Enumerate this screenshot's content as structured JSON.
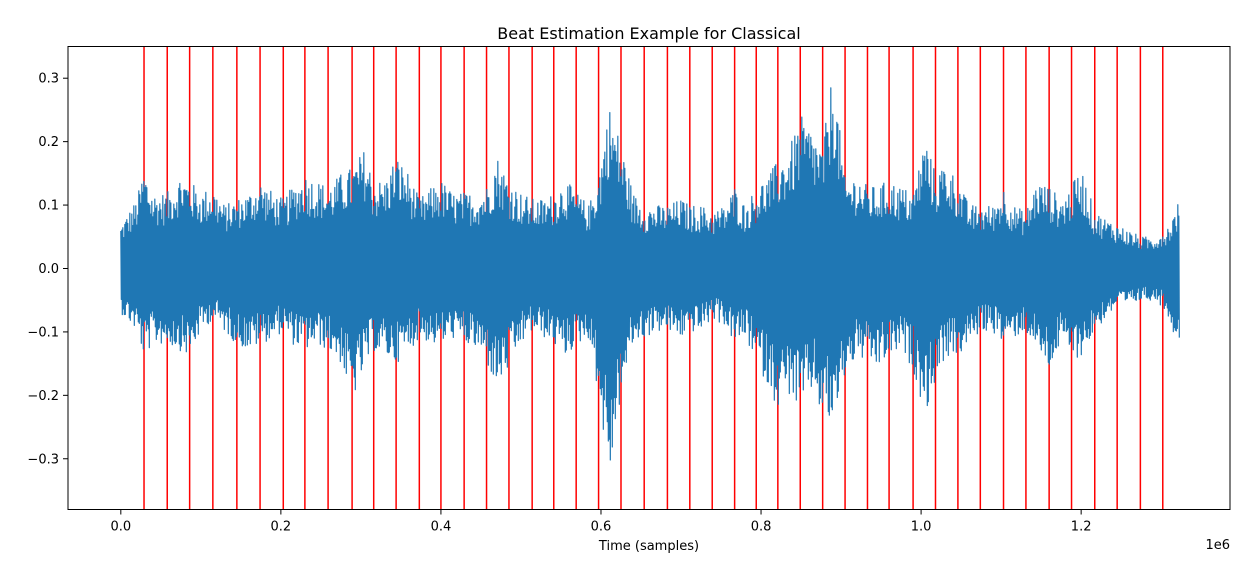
{
  "chart_data": {
    "type": "line",
    "title": "Beat Estimation Example for Classical",
    "xlabel": "Time (samples)",
    "ylabel": "",
    "x_offset_label": "1e6",
    "xlim": [
      -0.066,
      1.386
    ],
    "ylim": [
      -0.38,
      0.35
    ],
    "x_unit_multiplier": 1000000,
    "x_ticks": [
      0.0,
      0.2,
      0.4,
      0.6,
      0.8,
      1.0,
      1.2
    ],
    "x_tick_labels": [
      "0.0",
      "0.2",
      "0.4",
      "0.6",
      "0.8",
      "1.0",
      "1.2"
    ],
    "y_ticks": [
      -0.3,
      -0.2,
      -0.1,
      0.0,
      0.1,
      0.2,
      0.3
    ],
    "y_tick_labels": [
      "−0.3",
      "−0.2",
      "−0.1",
      "0.0",
      "0.1",
      "0.2",
      "0.3"
    ],
    "grid": false,
    "series": [
      {
        "kind": "waveform",
        "color": "#1f77b4",
        "x_range": [
          0.0,
          1.323
        ],
        "envelope": {
          "x": [
            0.0,
            0.02,
            0.029,
            0.04,
            0.058,
            0.075,
            0.086,
            0.1,
            0.115,
            0.13,
            0.145,
            0.16,
            0.174,
            0.19,
            0.203,
            0.215,
            0.23,
            0.245,
            0.26,
            0.275,
            0.289,
            0.305,
            0.316,
            0.33,
            0.344,
            0.36,
            0.373,
            0.39,
            0.4,
            0.415,
            0.43,
            0.445,
            0.457,
            0.47,
            0.485,
            0.5,
            0.514,
            0.53,
            0.541,
            0.555,
            0.57,
            0.585,
            0.597,
            0.61,
            0.625,
            0.64,
            0.654,
            0.67,
            0.683,
            0.7,
            0.711,
            0.725,
            0.739,
            0.755,
            0.767,
            0.78,
            0.795,
            0.81,
            0.821,
            0.835,
            0.85,
            0.865,
            0.877,
            0.89,
            0.905,
            0.92,
            0.933,
            0.945,
            0.96,
            0.975,
            0.99,
            1.005,
            1.018,
            1.03,
            1.046,
            1.06,
            1.074,
            1.09,
            1.103,
            1.115,
            1.131,
            1.145,
            1.16,
            1.175,
            1.188,
            1.2,
            1.217,
            1.23,
            1.245,
            1.26,
            1.275,
            1.29,
            1.302,
            1.31,
            1.323
          ],
          "upper": [
            0.07,
            0.11,
            0.16,
            0.12,
            0.12,
            0.15,
            0.14,
            0.12,
            0.13,
            0.1,
            0.11,
            0.12,
            0.14,
            0.12,
            0.11,
            0.13,
            0.15,
            0.14,
            0.13,
            0.15,
            0.16,
            0.19,
            0.14,
            0.14,
            0.18,
            0.15,
            0.11,
            0.13,
            0.14,
            0.12,
            0.12,
            0.12,
            0.13,
            0.18,
            0.14,
            0.12,
            0.11,
            0.11,
            0.12,
            0.14,
            0.12,
            0.1,
            0.15,
            0.26,
            0.2,
            0.12,
            0.1,
            0.1,
            0.1,
            0.11,
            0.1,
            0.1,
            0.09,
            0.1,
            0.13,
            0.1,
            0.13,
            0.15,
            0.17,
            0.19,
            0.24,
            0.22,
            0.19,
            0.32,
            0.14,
            0.15,
            0.13,
            0.13,
            0.14,
            0.13,
            0.12,
            0.21,
            0.15,
            0.17,
            0.14,
            0.1,
            0.1,
            0.1,
            0.13,
            0.1,
            0.09,
            0.14,
            0.13,
            0.11,
            0.13,
            0.16,
            0.09,
            0.08,
            0.07,
            0.06,
            0.05,
            0.05,
            0.06,
            0.07,
            0.11
          ],
          "lower": [
            -0.07,
            -0.1,
            -0.14,
            -0.12,
            -0.12,
            -0.13,
            -0.14,
            -0.1,
            -0.08,
            -0.1,
            -0.12,
            -0.13,
            -0.12,
            -0.11,
            -0.1,
            -0.12,
            -0.13,
            -0.12,
            -0.13,
            -0.15,
            -0.21,
            -0.16,
            -0.13,
            -0.14,
            -0.15,
            -0.13,
            -0.11,
            -0.12,
            -0.12,
            -0.11,
            -0.12,
            -0.13,
            -0.15,
            -0.19,
            -0.16,
            -0.12,
            -0.1,
            -0.11,
            -0.12,
            -0.14,
            -0.12,
            -0.11,
            -0.2,
            -0.34,
            -0.2,
            -0.12,
            -0.11,
            -0.1,
            -0.1,
            -0.11,
            -0.1,
            -0.1,
            -0.08,
            -0.09,
            -0.12,
            -0.11,
            -0.15,
            -0.19,
            -0.22,
            -0.2,
            -0.23,
            -0.19,
            -0.24,
            -0.25,
            -0.17,
            -0.14,
            -0.15,
            -0.16,
            -0.14,
            -0.13,
            -0.16,
            -0.23,
            -0.18,
            -0.14,
            -0.14,
            -0.12,
            -0.1,
            -0.1,
            -0.12,
            -0.11,
            -0.1,
            -0.13,
            -0.16,
            -0.12,
            -0.14,
            -0.14,
            -0.1,
            -0.08,
            -0.06,
            -0.06,
            -0.05,
            -0.05,
            -0.06,
            -0.08,
            -0.13
          ]
        }
      },
      {
        "kind": "beat_markers",
        "color": "#ff0000",
        "x": [
          0.029,
          0.058,
          0.086,
          0.115,
          0.145,
          0.174,
          0.203,
          0.23,
          0.259,
          0.289,
          0.316,
          0.344,
          0.373,
          0.4,
          0.429,
          0.457,
          0.485,
          0.514,
          0.541,
          0.569,
          0.597,
          0.625,
          0.654,
          0.683,
          0.711,
          0.739,
          0.767,
          0.794,
          0.821,
          0.849,
          0.877,
          0.905,
          0.933,
          0.96,
          0.99,
          1.018,
          1.046,
          1.074,
          1.103,
          1.131,
          1.16,
          1.188,
          1.217,
          1.245,
          1.274,
          1.302
        ]
      }
    ]
  }
}
